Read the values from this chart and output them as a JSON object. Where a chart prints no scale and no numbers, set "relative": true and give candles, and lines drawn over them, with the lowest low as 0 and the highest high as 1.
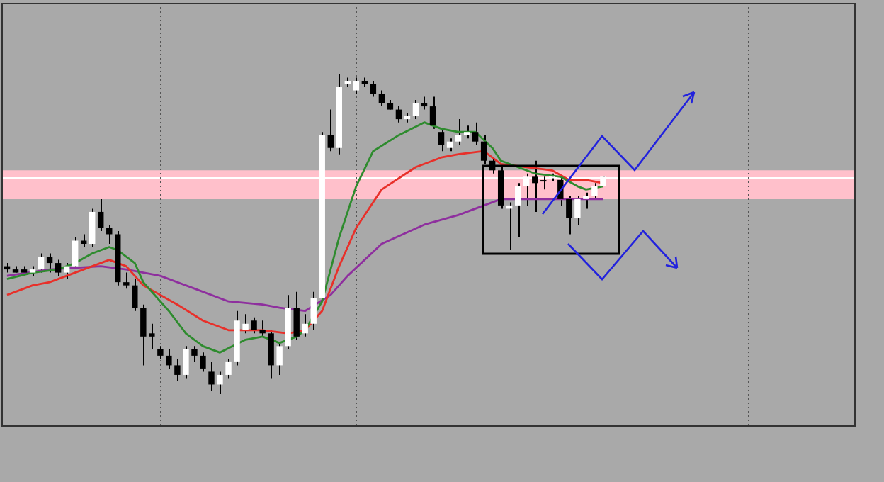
{
  "chart_data": {
    "type": "candlestick",
    "relative": true,
    "grid": false,
    "legend": false,
    "marker": "none",
    "categories": [
      null,
      null,
      null,
      null,
      null,
      null,
      null,
      null,
      null,
      null,
      null,
      null,
      null,
      null,
      null,
      null,
      null,
      null,
      null,
      null,
      null,
      null,
      null,
      null,
      null,
      null,
      null,
      null,
      null,
      null,
      null,
      null,
      null,
      null,
      null,
      null,
      null,
      null,
      null,
      null,
      null,
      null,
      null,
      null,
      null,
      null,
      null,
      null,
      null,
      null,
      null,
      null,
      null,
      null,
      null,
      null,
      null,
      null,
      null,
      null,
      null,
      null,
      null,
      null,
      null,
      null,
      null,
      null,
      null,
      null,
      null,
      null,
      null,
      null,
      null,
      null,
      null,
      null,
      null,
      null,
      null,
      null,
      null,
      null,
      null,
      null,
      null,
      null,
      null,
      null,
      null,
      null,
      null,
      null,
      null,
      null,
      null,
      null,
      null,
      null
    ],
    "ohlc": [
      [
        0.4,
        0.41,
        0.38,
        0.39
      ],
      [
        0.39,
        0.4,
        0.38,
        0.38
      ],
      [
        0.39,
        0.4,
        0.38,
        0.38
      ],
      [
        0.38,
        0.4,
        0.37,
        0.39
      ],
      [
        0.39,
        0.44,
        0.38,
        0.43
      ],
      [
        0.43,
        0.44,
        0.38,
        0.41
      ],
      [
        0.41,
        0.42,
        0.37,
        0.38
      ],
      [
        0.38,
        0.41,
        0.36,
        0.4
      ],
      [
        0.4,
        0.49,
        0.39,
        0.48
      ],
      [
        0.48,
        0.5,
        0.46,
        0.47
      ],
      [
        0.47,
        0.58,
        0.46,
        0.57
      ],
      [
        0.57,
        0.61,
        0.51,
        0.52
      ],
      [
        0.52,
        0.53,
        0.47,
        0.5
      ],
      [
        0.5,
        0.51,
        0.34,
        0.35
      ],
      [
        0.35,
        0.38,
        0.33,
        0.34
      ],
      [
        0.34,
        0.36,
        0.26,
        0.27
      ],
      [
        0.27,
        0.28,
        0.09,
        0.18
      ],
      [
        0.19,
        0.22,
        0.14,
        0.18
      ],
      [
        0.14,
        0.15,
        0.11,
        0.12
      ],
      [
        0.12,
        0.14,
        0.08,
        0.09
      ],
      [
        0.09,
        0.11,
        0.04,
        0.06
      ],
      [
        0.06,
        0.15,
        0.05,
        0.14
      ],
      [
        0.14,
        0.15,
        0.1,
        0.12
      ],
      [
        0.12,
        0.13,
        0.07,
        0.08
      ],
      [
        0.07,
        0.1,
        0.01,
        0.03
      ],
      [
        0.03,
        0.07,
        0,
        0.06
      ],
      [
        0.06,
        0.11,
        0.05,
        0.1
      ],
      [
        0.1,
        0.26,
        0.09,
        0.23
      ],
      [
        0.2,
        0.25,
        0.19,
        0.22
      ],
      [
        0.23,
        0.24,
        0.19,
        0.2
      ],
      [
        0.2,
        0.23,
        0.18,
        0.19
      ],
      [
        0.19,
        0.2,
        0.05,
        0.09
      ],
      [
        0.09,
        0.16,
        0.06,
        0.15
      ],
      [
        0.15,
        0.31,
        0.14,
        0.27
      ],
      [
        0.27,
        0.32,
        0.17,
        0.18
      ],
      [
        0.19,
        0.25,
        0.18,
        0.22
      ],
      [
        0.22,
        0.32,
        0.2,
        0.3
      ],
      [
        0.3,
        0.82,
        0.29,
        0.81
      ],
      [
        0.81,
        0.89,
        0.76,
        0.77
      ],
      [
        0.77,
        1,
        0.75,
        0.96
      ],
      [
        0.97,
        0.99,
        0.96,
        0.98
      ],
      [
        0.95,
        0.99,
        0.94,
        0.98
      ],
      [
        0.98,
        0.99,
        0.96,
        0.97
      ],
      [
        0.97,
        0.98,
        0.93,
        0.94
      ],
      [
        0.94,
        0.95,
        0.9,
        0.91
      ],
      [
        0.91,
        0.92,
        0.89,
        0.89
      ],
      [
        0.89,
        0.9,
        0.85,
        0.86
      ],
      [
        0.86,
        0.88,
        0.85,
        0.87
      ],
      [
        0.87,
        0.92,
        0.86,
        0.91
      ],
      [
        0.91,
        0.93,
        0.89,
        0.9
      ],
      [
        0.9,
        0.93,
        0.83,
        0.84
      ],
      [
        0.82,
        0.83,
        0.76,
        0.78
      ],
      [
        0.77,
        0.8,
        0.76,
        0.79
      ],
      [
        0.79,
        0.86,
        0.78,
        0.81
      ],
      [
        0.81,
        0.84,
        0.8,
        0.82
      ],
      [
        0.82,
        0.85,
        0.78,
        0.79
      ],
      [
        0.79,
        0.81,
        0.72,
        0.73
      ],
      [
        0.73,
        0.74,
        0.69,
        0.7
      ],
      [
        0.7,
        0.71,
        0.58,
        0.59
      ],
      [
        0.58,
        0.6,
        0.45,
        0.59
      ],
      [
        0.59,
        0.66,
        0.49,
        0.65
      ],
      [
        0.65,
        0.69,
        0.59,
        0.68
      ],
      [
        0.68,
        0.73,
        0.57,
        0.66
      ],
      [
        0.665,
        0.68,
        0.64,
        0.665
      ],
      [
        0.675,
        0.69,
        0.665,
        0.68
      ],
      [
        0.67,
        0.68,
        0.59,
        0.61
      ],
      [
        0.61,
        0.62,
        0.5,
        0.55
      ],
      [
        0.55,
        0.62,
        0.53,
        0.61
      ],
      [
        0.61,
        0.63,
        0.58,
        0.62
      ],
      [
        0.62,
        0.66,
        0.61,
        0.65
      ],
      [
        0.65,
        0.68,
        0.65,
        0.68
      ],
      null,
      null,
      null,
      null,
      null,
      null,
      null,
      null,
      null,
      null,
      null,
      null,
      null,
      null,
      null,
      null,
      null,
      null,
      null,
      null,
      null,
      null,
      null,
      null,
      null,
      null,
      null,
      null,
      null
    ],
    "series": [
      {
        "type": "line",
        "color": "#2e8b2e",
        "values": [
          0.36,
          null,
          null,
          0.38,
          null,
          null,
          0.39,
          null,
          0.41,
          null,
          0.44,
          null,
          0.46,
          0.45,
          null,
          0.41,
          0.35,
          null,
          null,
          0.26,
          null,
          0.19,
          null,
          0.15,
          null,
          0.13,
          null,
          null,
          0.17,
          null,
          0.18,
          null,
          0.16,
          null,
          0.18,
          0.2,
          null,
          0.29,
          null,
          0.49,
          null,
          0.65,
          null,
          0.76,
          null,
          null,
          0.81,
          null,
          null,
          0.85,
          null,
          0.83,
          null,
          0.82,
          null,
          0.82,
          null,
          0.77,
          0.73,
          null,
          0.71,
          null,
          0.69,
          null,
          null,
          0.68,
          null,
          0.65,
          0.64,
          null,
          0.65,
          null,
          null,
          null,
          null,
          null,
          null,
          null,
          null,
          null,
          null,
          null,
          null,
          null,
          null,
          null,
          null,
          null,
          null,
          null,
          null,
          null,
          null,
          null,
          null,
          null,
          null,
          null,
          null,
          null
        ]
      },
      {
        "type": "line",
        "color": "#e8302a",
        "values": [
          0.31,
          null,
          null,
          0.34,
          null,
          0.35,
          null,
          null,
          0.38,
          null,
          null,
          null,
          0.42,
          null,
          0.4,
          null,
          0.34,
          null,
          null,
          null,
          0.28,
          null,
          null,
          0.23,
          null,
          null,
          0.2,
          null,
          null,
          null,
          0.2,
          null,
          null,
          0.19,
          null,
          0.2,
          null,
          0.26,
          null,
          0.4,
          null,
          0.52,
          null,
          null,
          0.64,
          null,
          null,
          null,
          0.71,
          null,
          null,
          0.74,
          null,
          0.75,
          null,
          null,
          0.76,
          null,
          0.72,
          null,
          null,
          0.71,
          null,
          null,
          0.7,
          null,
          0.67,
          null,
          0.67,
          null,
          0.66,
          null,
          null,
          null,
          null,
          null,
          null,
          null,
          null,
          null,
          null,
          null,
          null,
          null,
          null,
          null,
          null,
          null,
          null,
          null,
          null,
          null,
          null,
          null,
          null,
          null,
          null,
          null,
          null,
          null
        ]
      },
      {
        "type": "line",
        "color": "#8e2f9e",
        "values": [
          0.37,
          null,
          null,
          null,
          null,
          0.39,
          null,
          null,
          null,
          null,
          null,
          0.4,
          null,
          null,
          0.39,
          null,
          null,
          null,
          0.37,
          null,
          null,
          null,
          0.33,
          null,
          null,
          null,
          0.29,
          null,
          null,
          null,
          0.28,
          null,
          0.27,
          null,
          null,
          0.26,
          null,
          null,
          0.31,
          null,
          0.37,
          null,
          null,
          null,
          0.47,
          null,
          null,
          null,
          null,
          0.53,
          null,
          null,
          null,
          0.56,
          null,
          null,
          0.59,
          null,
          0.61,
          null,
          null,
          0.61,
          null,
          null,
          0.61,
          null,
          null,
          0.61,
          null,
          null,
          0.61,
          null,
          null,
          null,
          null,
          null,
          null,
          null,
          null,
          null,
          null,
          null,
          null,
          null,
          null,
          null,
          null,
          null,
          null,
          null,
          null,
          null,
          null,
          null,
          null,
          null,
          null,
          null,
          null,
          null
        ]
      }
    ],
    "bands": [
      {
        "axis": "y",
        "from": 0.61,
        "to": 0.7,
        "color": "#ffc0cb"
      }
    ],
    "ref_lines": [
      {
        "axis": "y",
        "value": 0.68,
        "color": "#ffffff"
      }
    ]
  }
}
